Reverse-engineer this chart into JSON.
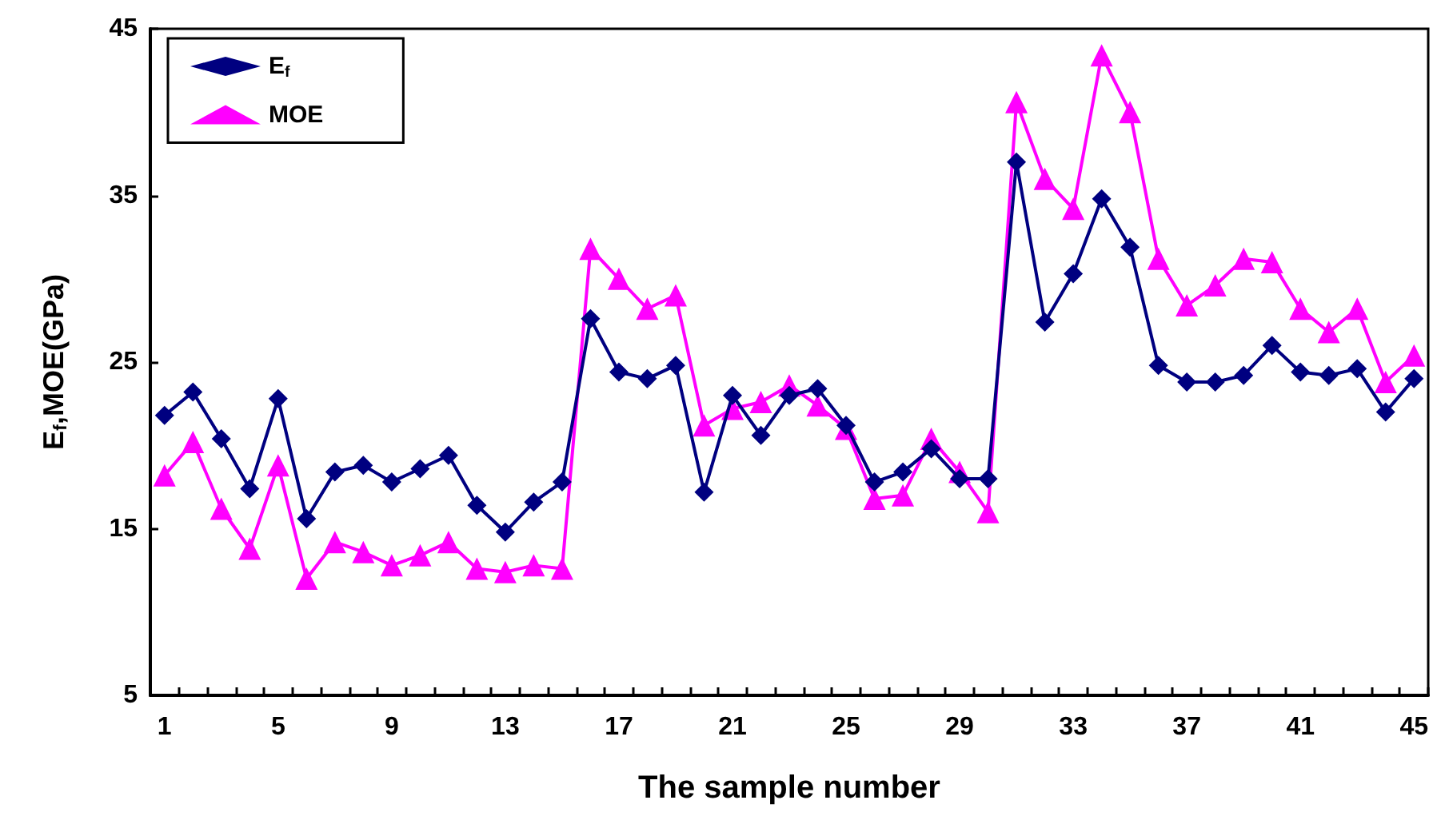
{
  "chart_data": {
    "type": "line",
    "xlabel": "The sample number",
    "ylabel": "E$_{f}$,MOE(GPa)",
    "categories": [
      "1",
      null,
      null,
      null,
      "5",
      null,
      null,
      null,
      "9",
      null,
      null,
      null,
      "13",
      null,
      null,
      null,
      "17",
      null,
      null,
      null,
      "21",
      null,
      null,
      null,
      "25",
      null,
      null,
      null,
      "29",
      null,
      null,
      null,
      "33",
      null,
      null,
      null,
      "37",
      null,
      null,
      null,
      "41",
      null,
      null,
      null,
      "45"
    ],
    "series": [
      {
        "name": "E$_{f}$",
        "color": "#000080",
        "marker": "diamond",
        "values": [
          21.8,
          23.2,
          20.4,
          17.4,
          22.8,
          15.6,
          18.4,
          18.8,
          17.8,
          18.6,
          19.4,
          16.4,
          14.8,
          16.6,
          17.8,
          27.6,
          24.4,
          24.0,
          24.8,
          17.2,
          23.0,
          20.6,
          23.0,
          23.4,
          21.2,
          17.8,
          18.4,
          19.8,
          18.0,
          18.0,
          37.0,
          27.4,
          30.3,
          34.8,
          31.9,
          24.8,
          23.8,
          23.8,
          24.2,
          26.0,
          24.4,
          24.2,
          24.6,
          22.0,
          24.0
        ]
      },
      {
        "name": "MOE",
        "color": "#ff00ff",
        "marker": "triangle",
        "values": [
          18.2,
          20.2,
          16.2,
          13.8,
          18.8,
          12.0,
          14.2,
          13.6,
          12.8,
          13.4,
          14.2,
          12.6,
          12.4,
          12.8,
          12.6,
          31.8,
          30.0,
          28.2,
          29.0,
          21.2,
          22.2,
          22.6,
          23.6,
          22.4,
          21.0,
          16.8,
          17.0,
          20.4,
          18.4,
          16.0,
          40.6,
          36.0,
          34.2,
          43.4,
          40.0,
          31.2,
          28.4,
          29.6,
          31.2,
          31.0,
          28.2,
          26.8,
          28.2,
          23.8,
          25.4
        ]
      }
    ],
    "ylim": [
      5,
      45
    ],
    "yticks": [
      5,
      15,
      25,
      35,
      45
    ],
    "grid": false,
    "legend": "top left"
  }
}
